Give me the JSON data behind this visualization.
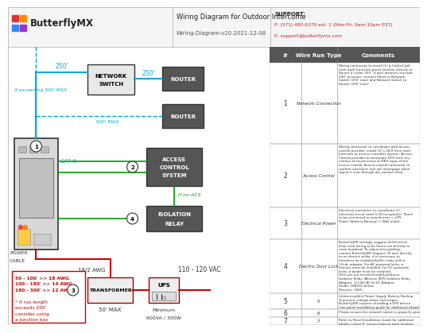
{
  "title": "Wiring Diagram for Outdoor Intercome",
  "subtitle": "Wiring-Diagram-v20-2021-12-08",
  "logo_text": "ButterflyMX",
  "support_line1": "SUPPORT:",
  "support_line2": "P: (571) 480.6379 ext. 2 (Mon-Fri, 6am-10pm EST)",
  "support_line3": "E: support@butterflymx.com",
  "bg_color": "#ffffff",
  "cyan_color": "#00aadd",
  "green_color": "#009900",
  "red_color": "#cc0000",
  "wire_types": [
    "Network Connection",
    "Access Control",
    "Electrical Power",
    "Electric Door Lock",
    "5",
    "6",
    "7"
  ],
  "comments": [
    "Wiring contractor to install (1) a Cat5e/Cat6\nfrom each Intercom panel location directly to\nRouter if under 300'. If wire distance exceeds\n300' to router, connect Panel to Network\nSwitch (250' max) and Network Switch to\nRouter (250' max).",
    "Wiring contractor to coordinate with access\ncontrol provider, install (1) x 18/2 from each\nIntercom to access controller system. Access\nControl provider to terminate 18/2 from dry\ncontact of touchscreen to REX Input of the\naccess control. Access control contractor to\nconfirm electronic lock will disengage when\nsignal is sent through dry contact relay.",
    "Electrical contractor to coordinate (1)\nelectrical circuit (with 5-20 receptacle). Panel\nto be connected to transformer > UPS\nPower (Battery Backup) > Wall outlet",
    "ButterflyMX strongly suggest all Electrical\nDoor Lock wiring to be home-run directly to\nmain headend. To adjust timing/delay,\ncontact ButterflyMX Support. To wire directly\nto an electric strike, it is necessary to\nintroduce an isolation/buffer relay with a\n12vdc adapter. For AC-powered locks, a\nresistor must be installed. For DC-powered\nlocks, a diode must be installed.\nHere are our recommended products:\nIsolation Relay: Altronix IR05 Isolation Relay\nAdapter: 12 Volt AC to DC Adapter\nDiode: 1N4001 Series\nResistor: (450)",
    "Uninterruptible Power Supply Battery Backup.\nTo prevent voltage drops and surges,\nButterflyMX requires installing a UPS device\n(see panel installation guide for additional details).",
    "Please ensure the network switch is properly grounded.",
    "Refer to Panel Installation Guide for additional\ndetails. Leave 6\" service loop at each location\nfor low voltage cabling."
  ]
}
